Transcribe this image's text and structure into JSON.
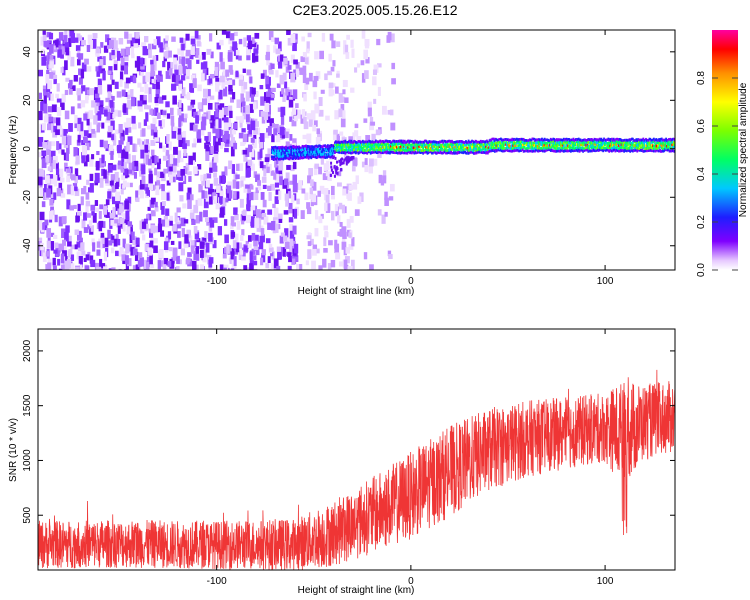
{
  "page": {
    "title": "C2E3.2025.005.15.26.E12"
  },
  "chart_data": [
    {
      "type": "heatmap",
      "xlabel": "Height of straight line (km)",
      "ylabel": "Frequency (Hz)",
      "xlim": [
        -192,
        136
      ],
      "ylim": [
        -50,
        49
      ],
      "xticks": [
        -100,
        0,
        100
      ],
      "yticks": [
        -40,
        -20,
        0,
        20,
        40
      ],
      "xtick_labels": [
        "-100",
        "0",
        "100"
      ],
      "ytick_labels": [
        "-40",
        "-20",
        "0",
        "20",
        "40"
      ],
      "colorbar": {
        "label": "Normalized spectral amplitude",
        "range": [
          0,
          1
        ],
        "ticks": [
          0.0,
          0.2,
          0.4,
          0.6,
          0.8
        ],
        "tick_labels": [
          "0.0",
          "0.2",
          "0.4",
          "0.6",
          "0.8"
        ],
        "colors": [
          "#ffffff",
          "#e6c8ff",
          "#7f00ff",
          "#1e1eff",
          "#00c8ff",
          "#00ff64",
          "#7cff00",
          "#ffff00",
          "#ff9000",
          "#ff0000",
          "#ff00a0"
        ]
      },
      "description_features": {
        "noise_region_x": [
          -192,
          -30
        ],
        "sparse_noise_x": [
          -60,
          -10
        ],
        "signal_line_x": [
          -72,
          136
        ],
        "signal_line_freq": [
          -3,
          2
        ]
      }
    },
    {
      "type": "line",
      "xlabel": "Height of straight line (km)",
      "ylabel": "SNR (10 * v/v)",
      "xlim": [
        -192,
        136
      ],
      "ylim": [
        0,
        2200
      ],
      "xticks": [
        -100,
        0,
        100
      ],
      "yticks": [
        500,
        1000,
        1500,
        2000
      ],
      "xtick_labels": [
        "-100",
        "0",
        "100"
      ],
      "ytick_labels": [
        "500",
        "1000",
        "1500",
        "2000"
      ],
      "series": [
        {
          "color": "#ef3535",
          "trend_x": [
            -192,
            -150,
            -100,
            -60,
            -40,
            -20,
            0,
            20,
            40,
            60,
            80,
            100,
            110,
            120,
            136
          ],
          "trend_y": [
            230,
            240,
            230,
            230,
            330,
            500,
            680,
            900,
            1100,
            1200,
            1250,
            1300,
            1250,
            1350,
            1400
          ],
          "spread": [
            220,
            220,
            220,
            240,
            300,
            350,
            400,
            420,
            380,
            350,
            330,
            320,
            500,
            350,
            330
          ]
        }
      ]
    }
  ]
}
